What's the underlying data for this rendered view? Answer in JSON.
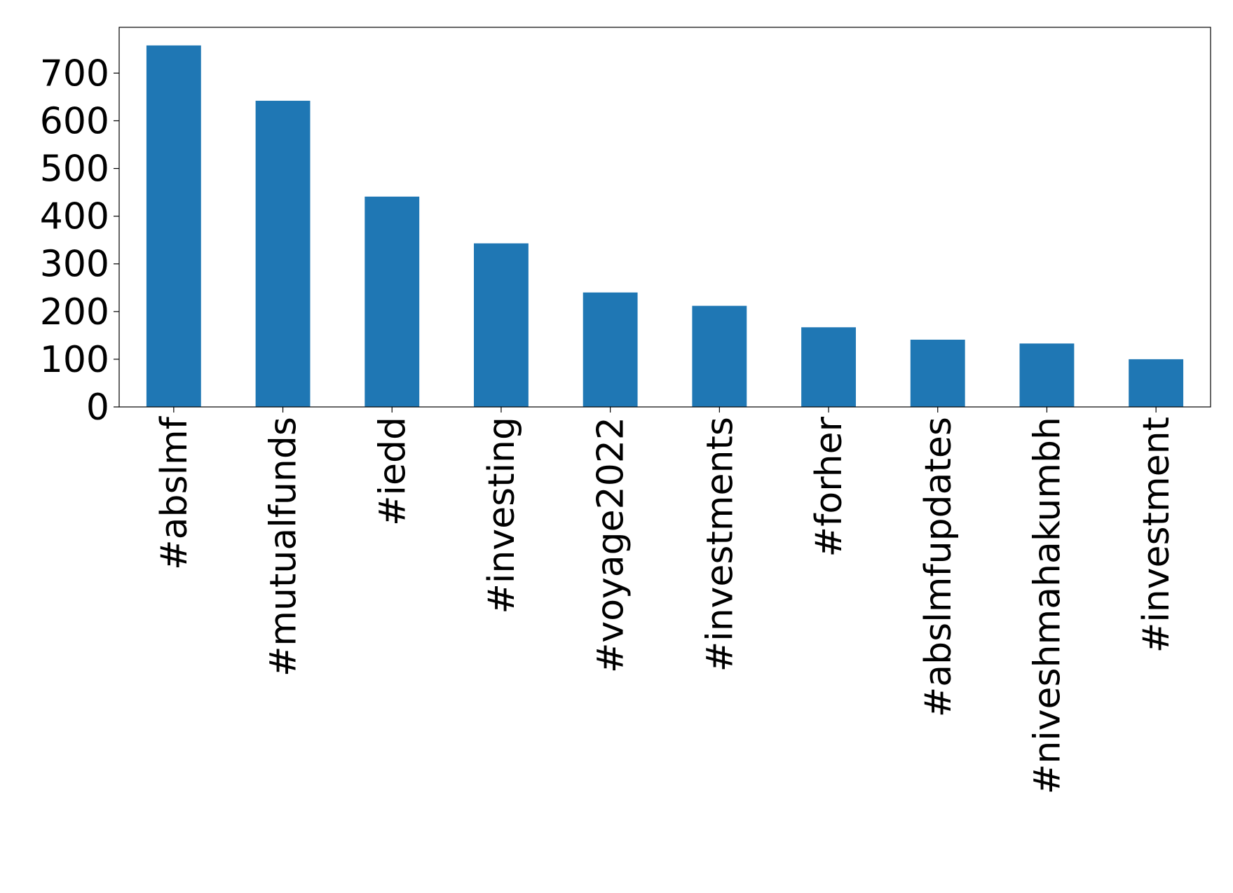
{
  "chart_data": {
    "type": "bar",
    "categories": [
      "#abslmf",
      "#mutualfunds",
      "#iedd",
      "#investing",
      "#voyage2022",
      "#investments",
      "#forher",
      "#abslmfupdates",
      "#niveshmahakumbh",
      "#investment"
    ],
    "values": [
      758,
      642,
      441,
      343,
      240,
      212,
      167,
      141,
      133,
      100
    ],
    "color": "#1f77b4",
    "ylim": [
      0,
      796
    ],
    "yticks": [
      0,
      100,
      200,
      300,
      400,
      500,
      600,
      700
    ],
    "grid": false
  }
}
